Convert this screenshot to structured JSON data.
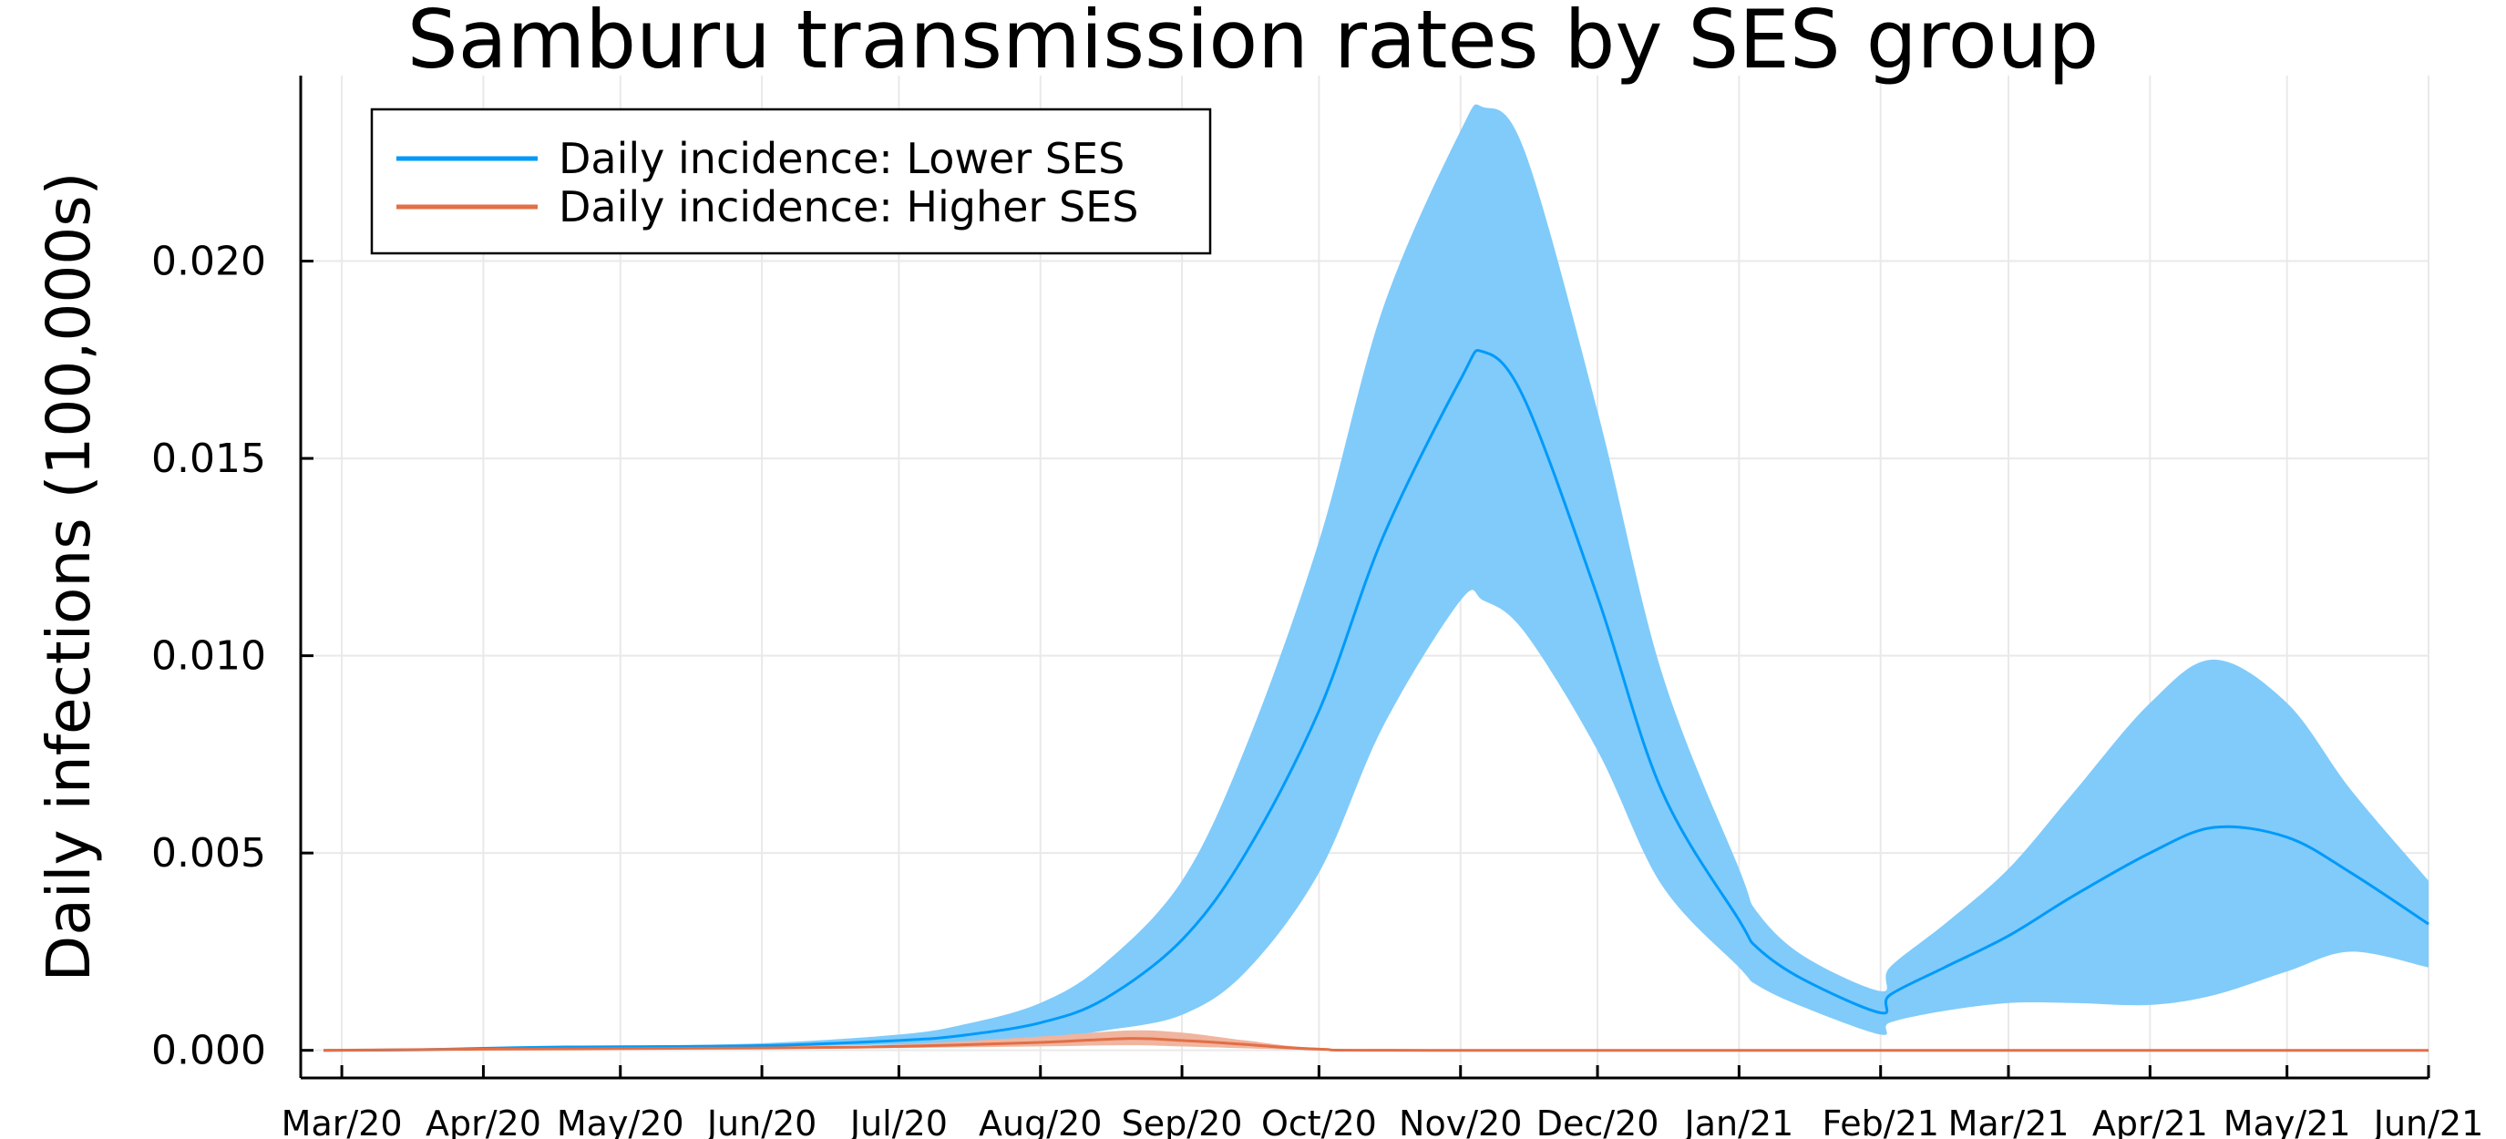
{
  "chart_data": {
    "type": "line",
    "title": "Samburu transmission rates by SES group",
    "ylabel": "Daily infections (100,000s)",
    "xlabel": "",
    "ylim": [
      -0.0007,
      0.0247
    ],
    "yticks": [
      {
        "value": 0.0,
        "label": "0.000"
      },
      {
        "value": 0.005,
        "label": "0.005"
      },
      {
        "value": 0.01,
        "label": "0.010"
      },
      {
        "value": 0.015,
        "label": "0.015"
      },
      {
        "value": 0.02,
        "label": "0.020"
      }
    ],
    "xlim": [
      "2020-02-21",
      "2021-06-01"
    ],
    "xticks": [
      {
        "date": "2020-03-01",
        "label": "Mar/20"
      },
      {
        "date": "2020-04-01",
        "label": "Apr/20"
      },
      {
        "date": "2020-05-01",
        "label": "May/20"
      },
      {
        "date": "2020-06-01",
        "label": "Jun/20"
      },
      {
        "date": "2020-07-01",
        "label": "Jul/20"
      },
      {
        "date": "2020-08-01",
        "label": "Aug/20"
      },
      {
        "date": "2020-09-01",
        "label": "Sep/20"
      },
      {
        "date": "2020-10-01",
        "label": "Oct/20"
      },
      {
        "date": "2020-11-01",
        "label": "Nov/20"
      },
      {
        "date": "2020-12-01",
        "label": "Dec/20"
      },
      {
        "date": "2021-01-01",
        "label": "Jan/21"
      },
      {
        "date": "2021-02-01",
        "label": "Feb/21"
      },
      {
        "date": "2021-03-01",
        "label": "Mar/21"
      },
      {
        "date": "2021-04-01",
        "label": "Apr/21"
      },
      {
        "date": "2021-05-01",
        "label": "May/21"
      },
      {
        "date": "2021-06-01",
        "label": "Jun/21"
      }
    ],
    "grid": true,
    "legend_position": "top-left",
    "series": [
      {
        "name": "Daily incidence: Lower SES",
        "color": "#009AFA",
        "band_color": "#80CBFA",
        "points": [
          {
            "date": "2020-02-26",
            "y": 0.0,
            "lo": 0.0,
            "hi": 0.0
          },
          {
            "date": "2020-03-15",
            "y": 1e-05,
            "lo": 1e-05,
            "hi": 2e-05
          },
          {
            "date": "2020-04-01",
            "y": 5e-05,
            "lo": 4e-05,
            "hi": 7e-05
          },
          {
            "date": "2020-04-15",
            "y": 8e-05,
            "lo": 6e-05,
            "hi": 0.0001
          },
          {
            "date": "2020-05-01",
            "y": 9e-05,
            "lo": 7e-05,
            "hi": 0.00012
          },
          {
            "date": "2020-06-01",
            "y": 0.00012,
            "lo": 9e-05,
            "hi": 0.00018
          },
          {
            "date": "2020-07-01",
            "y": 0.00025,
            "lo": 0.00015,
            "hi": 0.0004
          },
          {
            "date": "2020-07-15",
            "y": 0.00038,
            "lo": 0.0002,
            "hi": 0.00065
          },
          {
            "date": "2020-08-01",
            "y": 0.0007,
            "lo": 0.0003,
            "hi": 0.0012
          },
          {
            "date": "2020-08-15",
            "y": 0.0013,
            "lo": 0.0005,
            "hi": 0.0022
          },
          {
            "date": "2020-09-01",
            "y": 0.0028,
            "lo": 0.0009,
            "hi": 0.0043
          },
          {
            "date": "2020-09-15",
            "y": 0.005,
            "lo": 0.002,
            "hi": 0.0077
          },
          {
            "date": "2020-10-01",
            "y": 0.0086,
            "lo": 0.0045,
            "hi": 0.0129
          },
          {
            "date": "2020-10-15",
            "y": 0.013,
            "lo": 0.0082,
            "hi": 0.0188
          },
          {
            "date": "2020-11-01",
            "y": 0.017,
            "lo": 0.0114,
            "hi": 0.0233
          },
          {
            "date": "2020-11-06",
            "y": 0.0177,
            "lo": 0.0114,
            "hi": 0.0239
          },
          {
            "date": "2020-11-15",
            "y": 0.0165,
            "lo": 0.0106,
            "hi": 0.0228
          },
          {
            "date": "2020-12-01",
            "y": 0.0115,
            "lo": 0.0076,
            "hi": 0.0162
          },
          {
            "date": "2020-12-15",
            "y": 0.0066,
            "lo": 0.0042,
            "hi": 0.0096
          },
          {
            "date": "2021-01-01",
            "y": 0.0033,
            "lo": 0.0021,
            "hi": 0.0046
          },
          {
            "date": "2021-01-05",
            "y": 0.0026,
            "lo": 0.00165,
            "hi": 0.0035
          },
          {
            "date": "2021-01-15",
            "y": 0.0018,
            "lo": 0.0011,
            "hi": 0.0024
          },
          {
            "date": "2021-02-01",
            "y": 0.00095,
            "lo": 0.0004,
            "hi": 0.0015
          },
          {
            "date": "2021-02-03",
            "y": 0.0014,
            "lo": 0.0007,
            "hi": 0.0021
          },
          {
            "date": "2021-02-15",
            "y": 0.0021,
            "lo": 0.001,
            "hi": 0.0032
          },
          {
            "date": "2021-03-01",
            "y": 0.0029,
            "lo": 0.0012,
            "hi": 0.0046
          },
          {
            "date": "2021-03-15",
            "y": 0.0039,
            "lo": 0.0012,
            "hi": 0.0065
          },
          {
            "date": "2021-04-01",
            "y": 0.005,
            "lo": 0.00115,
            "hi": 0.0088
          },
          {
            "date": "2021-04-15",
            "y": 0.00565,
            "lo": 0.0014,
            "hi": 0.0099
          },
          {
            "date": "2021-05-01",
            "y": 0.0054,
            "lo": 0.002,
            "hi": 0.0088
          },
          {
            "date": "2021-05-15",
            "y": 0.0045,
            "lo": 0.0025,
            "hi": 0.0066
          },
          {
            "date": "2021-06-01",
            "y": 0.0032,
            "lo": 0.0021,
            "hi": 0.0043
          }
        ]
      },
      {
        "name": "Daily incidence: Higher SES",
        "color": "#E26F46",
        "band_color": "#F0B59F",
        "points": [
          {
            "date": "2020-02-26",
            "y": 0.0,
            "lo": 0.0,
            "hi": 0.0
          },
          {
            "date": "2020-04-01",
            "y": 3e-05,
            "lo": 2e-05,
            "hi": 4e-05
          },
          {
            "date": "2020-06-01",
            "y": 6e-05,
            "lo": 4e-05,
            "hi": 8e-05
          },
          {
            "date": "2020-07-01",
            "y": 0.0001,
            "lo": 6e-05,
            "hi": 0.00015
          },
          {
            "date": "2020-08-01",
            "y": 0.0002,
            "lo": 0.0001,
            "hi": 0.00035
          },
          {
            "date": "2020-08-20",
            "y": 0.0003,
            "lo": 0.00013,
            "hi": 0.0005
          },
          {
            "date": "2020-09-01",
            "y": 0.00025,
            "lo": 0.0001,
            "hi": 0.00045
          },
          {
            "date": "2020-09-15",
            "y": 0.00015,
            "lo": 5e-05,
            "hi": 0.00025
          },
          {
            "date": "2020-10-01",
            "y": 3e-05,
            "lo": 1e-05,
            "hi": 6e-05
          },
          {
            "date": "2020-11-01",
            "y": 0.0,
            "lo": 0.0,
            "hi": 1e-05
          },
          {
            "date": "2021-06-01",
            "y": 0.0,
            "lo": 0.0,
            "hi": 0.0
          }
        ]
      }
    ]
  }
}
